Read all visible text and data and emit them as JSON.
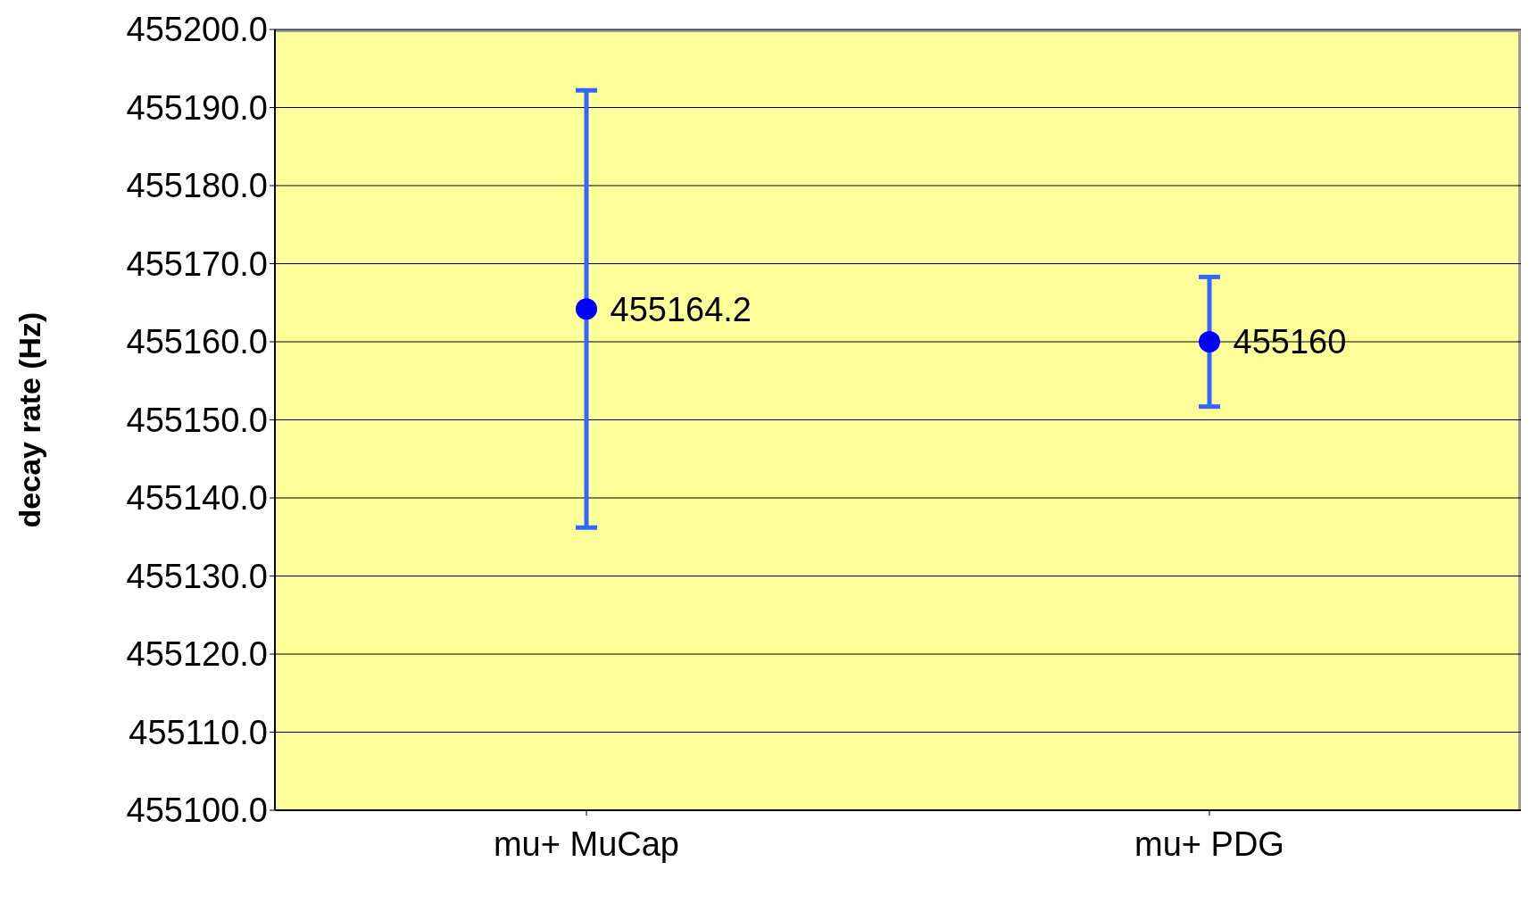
{
  "chart_data": {
    "type": "scatter",
    "ylabel": "decay rate (Hz)",
    "categories": [
      "mu+ MuCap",
      "mu+ PDG"
    ],
    "series": [
      {
        "color": "#0000ff",
        "values": [
          455164.2,
          455160
        ],
        "errors": [
          28,
          8.3
        ]
      }
    ],
    "ylim": [
      455100,
      455200
    ],
    "yticks": [
      {
        "value": 455100,
        "label": "455100.0"
      },
      {
        "value": 455110,
        "label": "455110.0"
      },
      {
        "value": 455120,
        "label": "455120.0"
      },
      {
        "value": 455130,
        "label": "455130.0"
      },
      {
        "value": 455140,
        "label": "455140.0"
      },
      {
        "value": 455150,
        "label": "455150.0"
      },
      {
        "value": 455160,
        "label": "455160.0"
      },
      {
        "value": 455170,
        "label": "455170.0"
      },
      {
        "value": 455180,
        "label": "455180.0"
      },
      {
        "value": 455190,
        "label": "455190.0"
      },
      {
        "value": 455200,
        "label": "455200.0"
      }
    ],
    "grid": "y",
    "marker": "circle",
    "data_labels": true,
    "legend": false
  }
}
